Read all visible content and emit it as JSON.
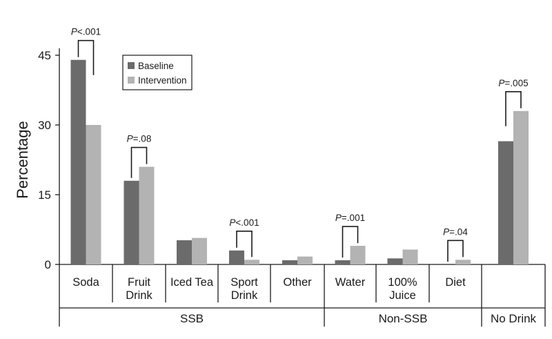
{
  "chart_data": {
    "type": "bar",
    "ylabel": "Percentage",
    "ylim": [
      0,
      45
    ],
    "yticks": [
      0,
      15,
      30,
      45
    ],
    "categories": [
      "Soda",
      "Fruit\nDrink",
      "Iced Tea",
      "Sport\nDrink",
      "Other",
      "Water",
      "100%\nJuice",
      "Diet",
      ""
    ],
    "series": [
      {
        "name": "Baseline",
        "color": "#6b6b6b",
        "values": [
          44.0,
          18.0,
          5.2,
          3.0,
          0.9,
          0.9,
          1.3,
          0.0,
          26.5
        ]
      },
      {
        "name": "Intervention",
        "color": "#b3b3b3",
        "values": [
          30.0,
          21.0,
          5.7,
          1.0,
          1.7,
          4.0,
          3.2,
          1.0,
          33.0
        ]
      }
    ],
    "groups": [
      {
        "label": "SSB",
        "categories": [
          0,
          1,
          2,
          3,
          4
        ]
      },
      {
        "label": "Non-SSB",
        "categories": [
          5,
          6,
          7
        ]
      },
      {
        "label": "No Drink",
        "categories": [
          8
        ]
      }
    ],
    "annotations": [
      {
        "category": 0,
        "text": "P<.001"
      },
      {
        "category": 1,
        "text": "P=.08"
      },
      {
        "category": 3,
        "text": "P<.001"
      },
      {
        "category": 5,
        "text": "P=.001"
      },
      {
        "category": 7,
        "text": "P=.04"
      },
      {
        "category": 8,
        "text": "P=.005"
      }
    ],
    "legend": {
      "position": "top-left",
      "entries": [
        "Baseline",
        "Intervention"
      ]
    }
  }
}
